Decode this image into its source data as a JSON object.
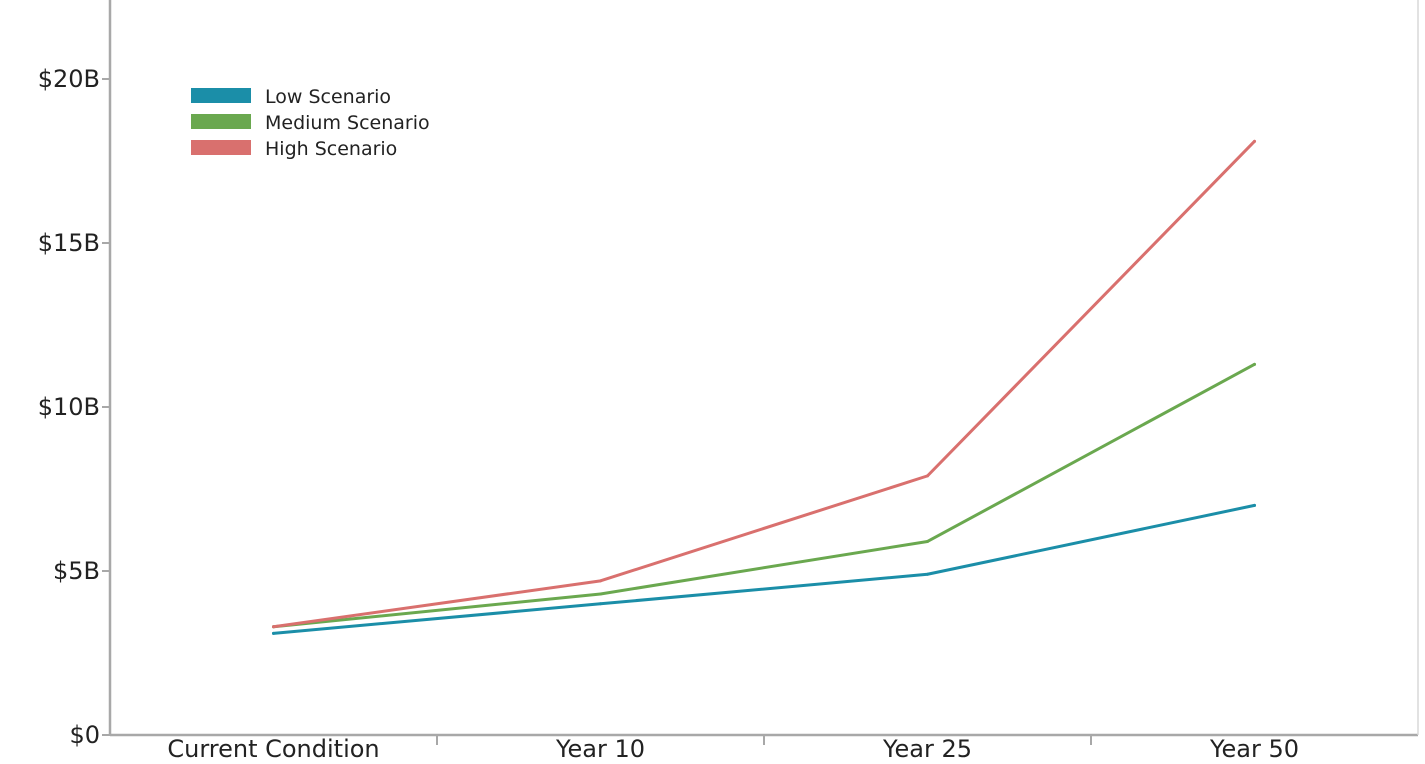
{
  "chart_data": {
    "type": "line",
    "title": "",
    "xlabel": "",
    "ylabel": "",
    "categories": [
      "Current Condition",
      "Year 10",
      "Year 25",
      "Year 50"
    ],
    "y_ticks": [
      {
        "value": 0,
        "label": "$0"
      },
      {
        "value": 5,
        "label": "$5B"
      },
      {
        "value": 10,
        "label": "$10B"
      },
      {
        "value": 15,
        "label": "$15B"
      },
      {
        "value": 20,
        "label": "$20B"
      }
    ],
    "ylim": [
      0,
      22.5
    ],
    "unit": "billions of dollars",
    "grid": false,
    "legend_position": "top-left",
    "series": [
      {
        "name": "Low Scenario",
        "color": "#1b8ea8",
        "values": [
          3.1,
          4.0,
          4.9,
          7.0
        ]
      },
      {
        "name": "Medium Scenario",
        "color": "#6aa84f",
        "values": [
          3.3,
          4.3,
          5.9,
          11.3
        ]
      },
      {
        "name": "High Scenario",
        "color": "#d9706e",
        "values": [
          3.3,
          4.7,
          7.9,
          18.1
        ]
      }
    ]
  }
}
